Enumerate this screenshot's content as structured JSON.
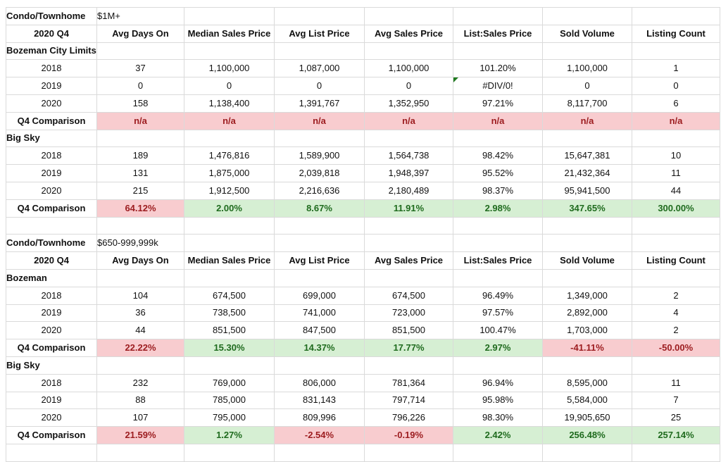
{
  "columns": [
    "2020 Q4",
    "Avg Days On",
    "Median Sales Price",
    "Avg List Price",
    "Avg Sales Price",
    "List:Sales Price",
    "Sold Volume",
    "Listing Count"
  ],
  "sections": [
    {
      "category": "Condo/Townhome",
      "price_range": "$1M+",
      "groups": [
        {
          "area": "Bozeman City Limits",
          "rows": [
            {
              "year": "2018",
              "values": [
                "37",
                "1,100,000",
                "1,087,000",
                "1,100,000",
                "101.20%",
                "1,100,000",
                "1"
              ]
            },
            {
              "year": "2019",
              "values": [
                "0",
                "0",
                "0",
                "0",
                "#DIV/0!",
                "0",
                "0"
              ]
            },
            {
              "year": "2020",
              "values": [
                "158",
                "1,138,400",
                "1,391,767",
                "1,352,950",
                "97.21%",
                "8,117,700",
                "6"
              ]
            }
          ],
          "comparison": {
            "label": "Q4 Comparison",
            "values": [
              "n/a",
              "n/a",
              "n/a",
              "n/a",
              "n/a",
              "n/a",
              "n/a"
            ],
            "status": [
              "negative",
              "negative",
              "negative",
              "negative",
              "negative",
              "negative",
              "negative"
            ]
          }
        },
        {
          "area": "Big Sky",
          "rows": [
            {
              "year": "2018",
              "values": [
                "189",
                "1,476,816",
                "1,589,900",
                "1,564,738",
                "98.42%",
                "15,647,381",
                "10"
              ]
            },
            {
              "year": "2019",
              "values": [
                "131",
                "1,875,000",
                "2,039,818",
                "1,948,397",
                "95.52%",
                "21,432,364",
                "11"
              ]
            },
            {
              "year": "2020",
              "values": [
                "215",
                "1,912,500",
                "2,216,636",
                "2,180,489",
                "98.37%",
                "95,941,500",
                "44"
              ]
            }
          ],
          "comparison": {
            "label": "Q4 Comparison",
            "values": [
              "64.12%",
              "2.00%",
              "8.67%",
              "11.91%",
              "2.98%",
              "347.65%",
              "300.00%"
            ],
            "status": [
              "negative",
              "positive",
              "positive",
              "positive",
              "positive",
              "positive",
              "positive"
            ]
          }
        }
      ]
    },
    {
      "category": "Condo/Townhome",
      "price_range": "$650-999,999k",
      "groups": [
        {
          "area": "Bozeman",
          "rows": [
            {
              "year": "2018",
              "values": [
                "104",
                "674,500",
                "699,000",
                "674,500",
                "96.49%",
                "1,349,000",
                "2"
              ]
            },
            {
              "year": "2019",
              "values": [
                "36",
                "738,500",
                "741,000",
                "723,000",
                "97.57%",
                "2,892,000",
                "4"
              ]
            },
            {
              "year": "2020",
              "values": [
                "44",
                "851,500",
                "847,500",
                "851,500",
                "100.47%",
                "1,703,000",
                "2"
              ]
            }
          ],
          "comparison": {
            "label": "Q4 Comparison",
            "values": [
              "22.22%",
              "15.30%",
              "14.37%",
              "17.77%",
              "2.97%",
              "-41.11%",
              "-50.00%"
            ],
            "status": [
              "negative",
              "positive",
              "positive",
              "positive",
              "positive",
              "negative",
              "negative"
            ]
          }
        },
        {
          "area": "Big Sky",
          "rows": [
            {
              "year": "2018",
              "values": [
                "232",
                "769,000",
                "806,000",
                "781,364",
                "96.94%",
                "8,595,000",
                "11"
              ]
            },
            {
              "year": "2019",
              "values": [
                "88",
                "785,000",
                "831,143",
                "797,714",
                "95.98%",
                "5,584,000",
                "7"
              ]
            },
            {
              "year": "2020",
              "values": [
                "107",
                "795,000",
                "809,996",
                "796,226",
                "98.30%",
                "19,905,650",
                "25"
              ]
            }
          ],
          "comparison": {
            "label": "Q4 Comparison",
            "values": [
              "21.59%",
              "1.27%",
              "-2.54%",
              "-0.19%",
              "2.42%",
              "256.48%",
              "257.14%"
            ],
            "status": [
              "negative",
              "positive",
              "negative",
              "negative",
              "positive",
              "positive",
              "positive"
            ]
          }
        }
      ]
    }
  ],
  "colors": {
    "negative_bg": "#f8cccf",
    "negative_text": "#9c1c1f",
    "positive_bg": "#d6efd3",
    "positive_text": "#1f6b1e"
  }
}
